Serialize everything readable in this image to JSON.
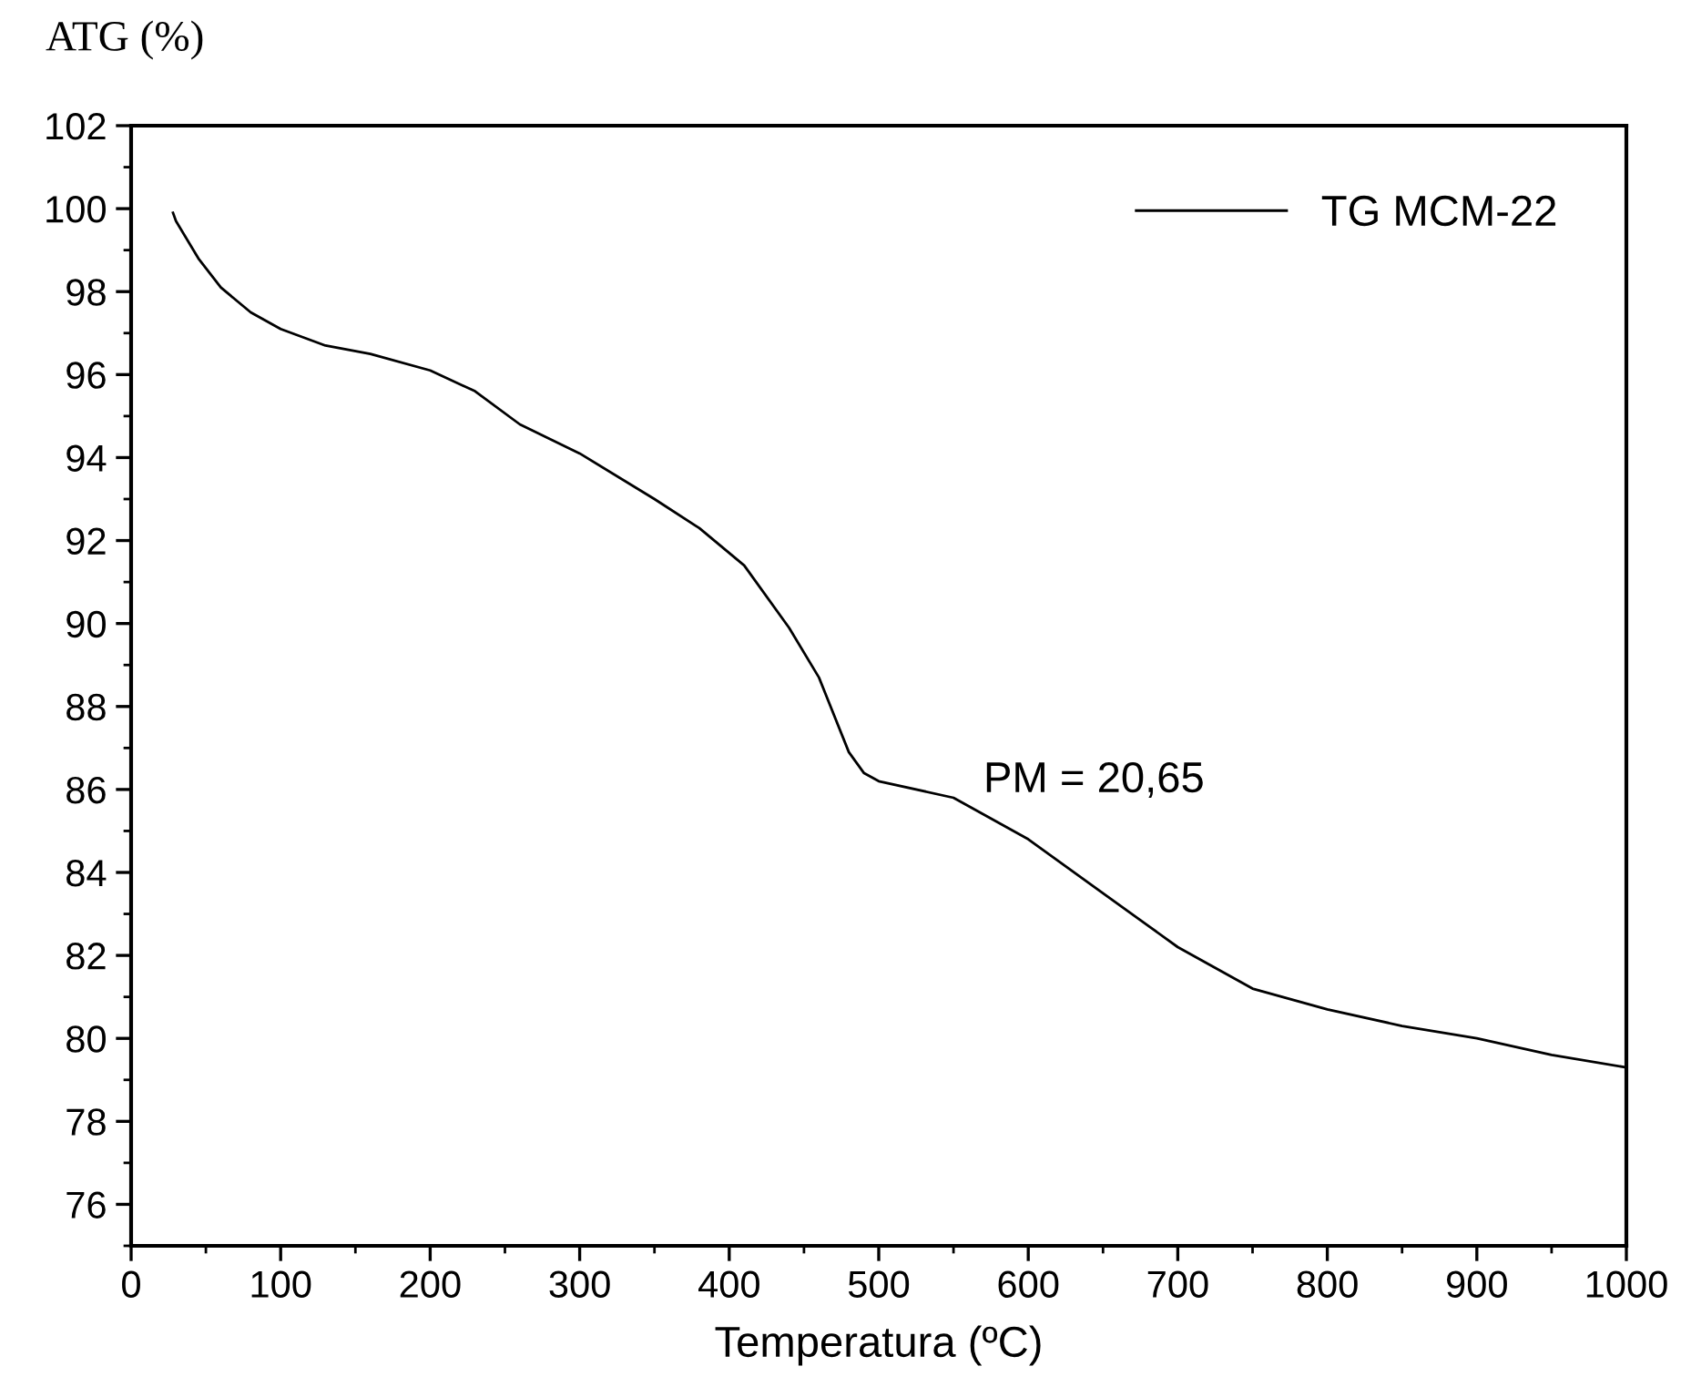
{
  "chart_data": {
    "type": "line",
    "xlabel": "Temperatura (ºC)",
    "ylabel": "ATG (%)",
    "annotations": [
      "PM = 20,65"
    ],
    "series": [
      {
        "name": "TG MCM-22",
        "color": "#000000",
        "x": [
          28,
          30,
          45,
          60,
          80,
          100,
          130,
          160,
          200,
          230,
          260,
          300,
          350,
          380,
          410,
          440,
          460,
          480,
          490,
          500,
          550,
          600,
          650,
          700,
          750,
          800,
          850,
          900,
          950,
          1000
        ],
        "values": [
          99.9,
          99.7,
          98.8,
          98.1,
          97.5,
          97.1,
          96.7,
          96.5,
          96.1,
          95.6,
          94.8,
          94.1,
          93.0,
          92.3,
          91.4,
          89.9,
          88.7,
          86.9,
          86.4,
          86.2,
          85.8,
          84.8,
          83.5,
          82.2,
          81.2,
          80.7,
          80.3,
          80.0,
          79.6,
          79.3
        ]
      }
    ],
    "xlim": [
      0,
      1000
    ],
    "ylim": [
      75,
      102
    ],
    "xticks": [
      0,
      100,
      200,
      300,
      400,
      500,
      600,
      700,
      800,
      900,
      1000
    ],
    "yticks": [
      76,
      78,
      80,
      82,
      84,
      86,
      88,
      90,
      92,
      94,
      96,
      98,
      100,
      102
    ],
    "grid": false,
    "legend": "top right",
    "marker": "none",
    "line_style": "solid"
  }
}
